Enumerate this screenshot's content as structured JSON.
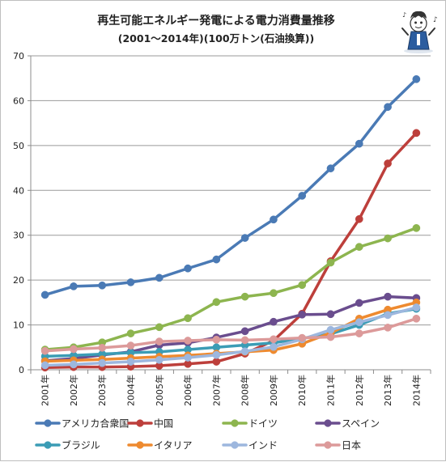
{
  "chart_data": {
    "type": "line",
    "title": "再生可能エネルギー発電による電力消費量推移",
    "subtitle": "(2001～2014年)(100万トン(石油換算))",
    "categories": [
      "2001年",
      "2002年",
      "2003年",
      "2004年",
      "2005年",
      "2006年",
      "2007年",
      "2008年",
      "2009年",
      "2010年",
      "2011年",
      "2012年",
      "2013年",
      "2014年"
    ],
    "ylim": [
      0,
      70
    ],
    "yticks": [
      0,
      10,
      20,
      30,
      40,
      50,
      60,
      70
    ],
    "grid": true,
    "legend_position": "bottom",
    "series": [
      {
        "name": "アメリカ合衆国",
        "color": "#4a7ab5",
        "values": [
          16.7,
          18.6,
          18.8,
          19.5,
          20.5,
          22.6,
          24.6,
          29.4,
          33.5,
          38.8,
          44.9,
          50.4,
          58.6,
          64.8
        ]
      },
      {
        "name": "中国",
        "color": "#bd3f3b",
        "values": [
          0.5,
          0.6,
          0.6,
          0.7,
          0.9,
          1.3,
          1.8,
          3.6,
          6.5,
          12.5,
          24.2,
          33.6,
          46.0,
          52.8
        ]
      },
      {
        "name": "ドイツ",
        "color": "#8db54f",
        "values": [
          4.5,
          5.0,
          6.1,
          8.1,
          9.5,
          11.5,
          15.1,
          16.3,
          17.1,
          18.9,
          23.9,
          27.4,
          29.3,
          31.6
        ]
      },
      {
        "name": "スペイン",
        "color": "#6a4d8e",
        "values": [
          2.0,
          2.5,
          3.3,
          4.0,
          5.5,
          6.0,
          7.2,
          8.6,
          10.7,
          12.3,
          12.4,
          14.9,
          16.3,
          16.0
        ]
      },
      {
        "name": "ブラジル",
        "color": "#3b9cb5",
        "values": [
          3.0,
          3.2,
          3.5,
          3.8,
          4.0,
          4.5,
          5.0,
          5.5,
          6.0,
          7.0,
          8.0,
          10.0,
          12.5,
          13.6
        ]
      },
      {
        "name": "イタリア",
        "color": "#ee8a2f",
        "values": [
          1.9,
          2.1,
          2.3,
          2.6,
          2.9,
          3.2,
          3.6,
          4.0,
          4.4,
          5.8,
          8.2,
          11.4,
          13.4,
          15.0
        ]
      },
      {
        "name": "インド",
        "color": "#9db7de",
        "values": [
          1.0,
          1.2,
          1.5,
          1.8,
          2.2,
          2.7,
          3.3,
          4.1,
          5.1,
          6.8,
          8.9,
          10.6,
          12.2,
          13.9
        ]
      },
      {
        "name": "日本",
        "color": "#dc9a9a",
        "values": [
          4.2,
          4.6,
          4.9,
          5.4,
          6.3,
          6.5,
          6.7,
          6.6,
          6.8,
          7.1,
          7.3,
          8.1,
          9.4,
          11.4
        ]
      }
    ]
  }
}
